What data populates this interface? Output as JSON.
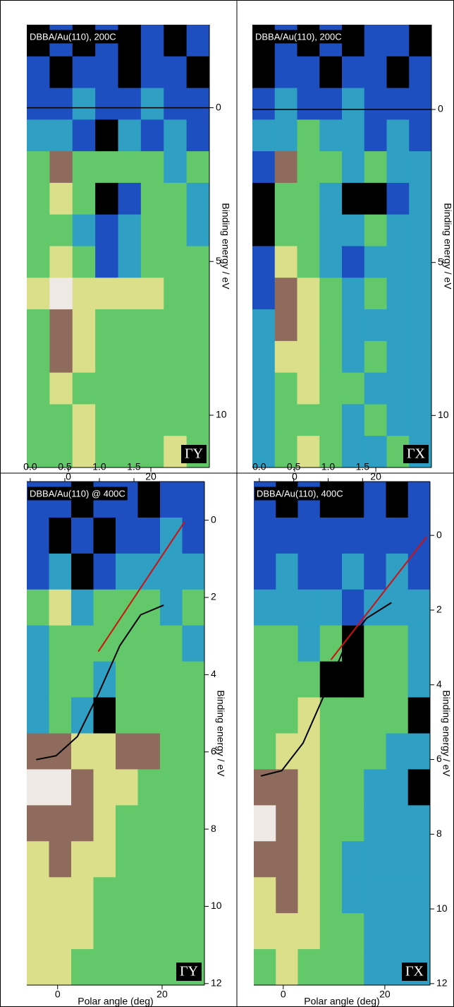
{
  "chart_data": [
    {
      "type": "heatmap",
      "title": "DBBA/Au(110), 200C",
      "label": "ΓY",
      "ylabel": "Binding energy / eV",
      "xlim": [
        -10.1,
        34.2
      ],
      "xticks": [
        0,
        20
      ],
      "ylim": [
        -2.7,
        11.7
      ],
      "yticks": [
        0,
        5,
        10
      ],
      "fermi_level": 0,
      "colorscale": [
        "#000000",
        "#1e4fc0",
        "#2f9fc4",
        "#62c86a",
        "#dcdf8a",
        "#8e6b5c",
        "#efe9e6"
      ],
      "z": [
        [
          0,
          1,
          0,
          1,
          0,
          1,
          0,
          1
        ],
        [
          1,
          0,
          1,
          1,
          0,
          1,
          1,
          0
        ],
        [
          1,
          1,
          2,
          1,
          1,
          2,
          1,
          1
        ],
        [
          2,
          2,
          1,
          0,
          2,
          1,
          2,
          1
        ],
        [
          3,
          5,
          3,
          3,
          3,
          3,
          2,
          3
        ],
        [
          3,
          4,
          3,
          0,
          1,
          3,
          3,
          2
        ],
        [
          3,
          3,
          2,
          1,
          2,
          3,
          3,
          2
        ],
        [
          3,
          4,
          3,
          1,
          2,
          3,
          3,
          3
        ],
        [
          4,
          6,
          4,
          4,
          4,
          4,
          3,
          3
        ],
        [
          3,
          5,
          4,
          3,
          3,
          3,
          3,
          3
        ],
        [
          3,
          5,
          4,
          3,
          3,
          3,
          3,
          3
        ],
        [
          3,
          4,
          3,
          3,
          3,
          3,
          3,
          3
        ],
        [
          3,
          3,
          4,
          3,
          3,
          3,
          3,
          3
        ],
        [
          3,
          3,
          4,
          3,
          3,
          3,
          4,
          3
        ]
      ]
    },
    {
      "type": "heatmap",
      "title": "DBBA/Au(110), 200C",
      "label": "ΓX",
      "ylabel": "Binding energy / eV",
      "xlim": [
        -10.4,
        33.7
      ],
      "xticks": [
        0,
        20
      ],
      "ylim": [
        -2.77,
        11.7
      ],
      "yticks": [
        0,
        5,
        10
      ],
      "fermi_level": 0,
      "colorscale": [
        "#000000",
        "#1e4fc0",
        "#2f9fc4",
        "#62c86a",
        "#dcdf8a",
        "#8e6b5c",
        "#efe9e6"
      ],
      "z": [
        [
          0,
          1,
          0,
          1,
          0,
          1,
          1,
          0
        ],
        [
          0,
          1,
          1,
          0,
          1,
          1,
          0,
          1
        ],
        [
          1,
          2,
          1,
          1,
          2,
          1,
          1,
          1
        ],
        [
          2,
          2,
          3,
          2,
          2,
          1,
          2,
          1
        ],
        [
          1,
          5,
          3,
          3,
          2,
          3,
          2,
          2
        ],
        [
          0,
          3,
          3,
          2,
          0,
          0,
          1,
          2
        ],
        [
          0,
          3,
          3,
          2,
          2,
          3,
          2,
          2
        ],
        [
          1,
          4,
          3,
          2,
          1,
          2,
          2,
          2
        ],
        [
          1,
          5,
          4,
          3,
          2,
          3,
          2,
          2
        ],
        [
          2,
          5,
          4,
          3,
          2,
          2,
          2,
          2
        ],
        [
          2,
          4,
          4,
          3,
          2,
          3,
          2,
          2
        ],
        [
          2,
          3,
          4,
          3,
          3,
          2,
          2,
          2
        ],
        [
          2,
          3,
          3,
          3,
          2,
          3,
          2,
          2
        ],
        [
          2,
          3,
          4,
          3,
          2,
          2,
          3,
          2
        ]
      ]
    },
    {
      "type": "heatmap",
      "title": "DBBA/Au(110) @ 400C",
      "label": "ΓY",
      "ylabel": "Binding energy / eV",
      "xlabel": "Polar angle (deg)",
      "xlim": [
        -5.9,
        28.1
      ],
      "xticks": [
        0,
        20
      ],
      "ylim": [
        -1.0,
        12.04
      ],
      "yticks": [
        0,
        2,
        4,
        6,
        8,
        10,
        12
      ],
      "x2lim": [
        -0.05,
        2.52
      ],
      "x2ticks": [
        {
          "value": 0,
          "label": "0.0"
        },
        0.5,
        {
          "value": 1,
          "label": "1.0"
        },
        1.5
      ],
      "colorscale": [
        "#000000",
        "#1e4fc0",
        "#2f9fc4",
        "#62c86a",
        "#dcdf8a",
        "#8e6b5c",
        "#efe9e6"
      ],
      "z": [
        [
          1,
          1,
          0,
          1,
          1,
          0,
          1,
          1
        ],
        [
          1,
          0,
          1,
          0,
          1,
          1,
          2,
          1
        ],
        [
          1,
          2,
          0,
          1,
          2,
          2,
          2,
          2
        ],
        [
          3,
          4,
          2,
          3,
          3,
          3,
          2,
          3
        ],
        [
          2,
          3,
          3,
          3,
          3,
          3,
          3,
          2
        ],
        [
          2,
          3,
          3,
          2,
          3,
          3,
          3,
          3
        ],
        [
          2,
          3,
          2,
          0,
          3,
          3,
          3,
          3
        ],
        [
          5,
          5,
          4,
          4,
          5,
          5,
          3,
          3
        ],
        [
          6,
          6,
          5,
          4,
          4,
          3,
          3,
          3
        ],
        [
          5,
          5,
          5,
          4,
          3,
          3,
          3,
          3
        ],
        [
          4,
          5,
          4,
          4,
          3,
          3,
          3,
          3
        ],
        [
          4,
          4,
          4,
          3,
          3,
          3,
          3,
          3
        ],
        [
          4,
          4,
          4,
          3,
          3,
          3,
          3,
          3
        ],
        [
          4,
          4,
          3,
          3,
          3,
          3,
          3,
          3
        ]
      ],
      "series": [
        {
          "color": "#d01010",
          "x": [
            24.3,
            7.8
          ],
          "y": [
            0.04,
            3.4
          ]
        },
        {
          "color": "#000000",
          "x": [
            -4.1,
            -0.3,
            3.8,
            7.8,
            11.9,
            15.9,
            20.3
          ],
          "y": [
            6.2,
            6.1,
            5.6,
            4.5,
            3.25,
            2.45,
            2.2
          ]
        }
      ]
    },
    {
      "type": "heatmap",
      "title": "DBBA/Au(110), 400C",
      "label": "ΓX",
      "ylabel": "Binding energy / eV",
      "xlabel": "Polar angle (deg)",
      "xlim": [
        -5.8,
        28.9
      ],
      "xticks": [
        0,
        20
      ],
      "ylim": [
        -1.44,
        12.04
      ],
      "yticks": [
        0,
        2,
        4,
        6,
        8,
        10,
        12
      ],
      "x2lim": [
        -0.08,
        2.48
      ],
      "x2ticks": [
        {
          "value": 0,
          "label": "0.0"
        },
        0.5,
        {
          "value": 1,
          "label": "1.0"
        },
        1.5
      ],
      "colorscale": [
        "#000000",
        "#1e4fc0",
        "#2f9fc4",
        "#62c86a",
        "#dcdf8a",
        "#8e6b5c",
        "#efe9e6"
      ],
      "z": [
        [
          1,
          0,
          1,
          0,
          0,
          1,
          0,
          1
        ],
        [
          1,
          1,
          1,
          1,
          1,
          1,
          1,
          1
        ],
        [
          1,
          2,
          1,
          1,
          2,
          1,
          2,
          1
        ],
        [
          2,
          2,
          2,
          2,
          1,
          2,
          2,
          2
        ],
        [
          3,
          3,
          2,
          3,
          0,
          3,
          3,
          2
        ],
        [
          3,
          3,
          3,
          0,
          0,
          3,
          3,
          2
        ],
        [
          3,
          3,
          4,
          3,
          3,
          3,
          3,
          0
        ],
        [
          3,
          4,
          4,
          3,
          3,
          3,
          2,
          2
        ],
        [
          5,
          5,
          4,
          3,
          3,
          2,
          2,
          0
        ],
        [
          6,
          5,
          4,
          3,
          3,
          2,
          2,
          2
        ],
        [
          5,
          5,
          4,
          3,
          2,
          2,
          2,
          2
        ],
        [
          4,
          5,
          4,
          3,
          2,
          2,
          2,
          2
        ],
        [
          4,
          4,
          4,
          3,
          3,
          2,
          2,
          2
        ],
        [
          3,
          4,
          3,
          3,
          3,
          2,
          2,
          2
        ]
      ],
      "series": [
        {
          "color": "#d01010",
          "x": [
            28.2,
            9.4
          ],
          "y": [
            0.04,
            3.33
          ]
        },
        {
          "color": "#000000",
          "x": [
            -4.4,
            -0.3,
            3.9,
            8.1,
            12.2,
            16.4,
            21.3
          ],
          "y": [
            6.44,
            6.3,
            5.56,
            4.26,
            2.96,
            2.22,
            1.8
          ]
        }
      ]
    }
  ]
}
